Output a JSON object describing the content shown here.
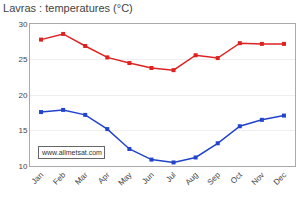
{
  "chart_data": {
    "type": "line",
    "title": "Lavras : temperatures (°C)",
    "categories": [
      "Jan",
      "Feb",
      "Mar",
      "Apr",
      "May",
      "Jun",
      "Jul",
      "Aug",
      "Sep",
      "Oct",
      "Nov",
      "Dec"
    ],
    "series": [
      {
        "color": "#dd2222",
        "values": [
          27.8,
          28.6,
          26.9,
          25.3,
          24.5,
          23.8,
          23.5,
          25.6,
          25.2,
          27.3,
          27.2,
          27.2
        ]
      },
      {
        "color": "#2244cc",
        "values": [
          17.6,
          17.9,
          17.2,
          15.2,
          12.4,
          10.9,
          10.5,
          11.2,
          13.2,
          15.6,
          16.5,
          17.1
        ]
      }
    ],
    "ylim": [
      10,
      30
    ],
    "yticks": [
      10,
      15,
      20,
      25,
      30
    ],
    "grid": true,
    "marker": "square",
    "line_style": "solid",
    "annotations": [
      "www.allmetsat.com"
    ]
  }
}
